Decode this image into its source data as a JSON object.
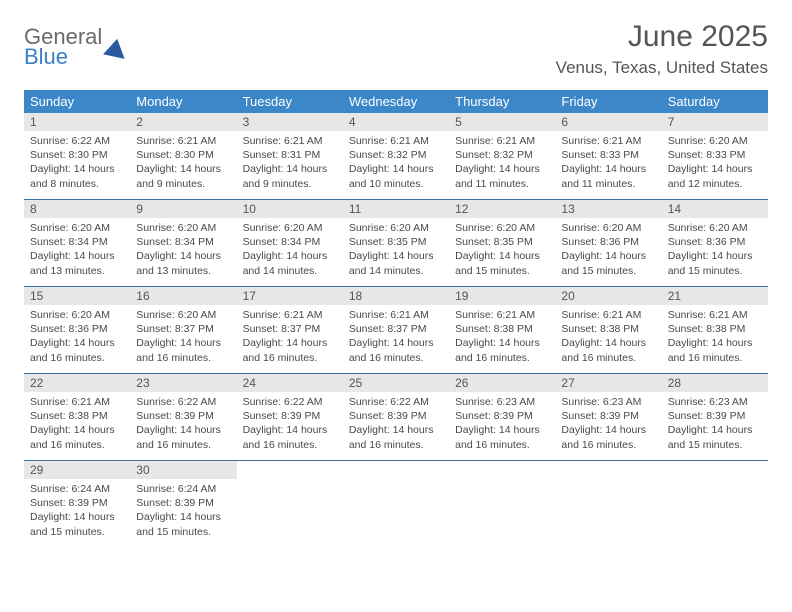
{
  "logo": {
    "word1": "General",
    "word2": "Blue"
  },
  "title": "June 2025",
  "location": "Venus, Texas, United States",
  "colors": {
    "header_bg": "#3b87c8",
    "header_fg": "#ffffff",
    "daynum_bg": "#e7e7e7",
    "row_border": "#3b6fa0",
    "text": "#4a4a4a"
  },
  "weekdays": [
    "Sunday",
    "Monday",
    "Tuesday",
    "Wednesday",
    "Thursday",
    "Friday",
    "Saturday"
  ],
  "weeks": [
    [
      {
        "n": "1",
        "sr": "6:22 AM",
        "ss": "8:30 PM",
        "dl": "14 hours and 8 minutes."
      },
      {
        "n": "2",
        "sr": "6:21 AM",
        "ss": "8:30 PM",
        "dl": "14 hours and 9 minutes."
      },
      {
        "n": "3",
        "sr": "6:21 AM",
        "ss": "8:31 PM",
        "dl": "14 hours and 9 minutes."
      },
      {
        "n": "4",
        "sr": "6:21 AM",
        "ss": "8:32 PM",
        "dl": "14 hours and 10 minutes."
      },
      {
        "n": "5",
        "sr": "6:21 AM",
        "ss": "8:32 PM",
        "dl": "14 hours and 11 minutes."
      },
      {
        "n": "6",
        "sr": "6:21 AM",
        "ss": "8:33 PM",
        "dl": "14 hours and 11 minutes."
      },
      {
        "n": "7",
        "sr": "6:20 AM",
        "ss": "8:33 PM",
        "dl": "14 hours and 12 minutes."
      }
    ],
    [
      {
        "n": "8",
        "sr": "6:20 AM",
        "ss": "8:34 PM",
        "dl": "14 hours and 13 minutes."
      },
      {
        "n": "9",
        "sr": "6:20 AM",
        "ss": "8:34 PM",
        "dl": "14 hours and 13 minutes."
      },
      {
        "n": "10",
        "sr": "6:20 AM",
        "ss": "8:34 PM",
        "dl": "14 hours and 14 minutes."
      },
      {
        "n": "11",
        "sr": "6:20 AM",
        "ss": "8:35 PM",
        "dl": "14 hours and 14 minutes."
      },
      {
        "n": "12",
        "sr": "6:20 AM",
        "ss": "8:35 PM",
        "dl": "14 hours and 15 minutes."
      },
      {
        "n": "13",
        "sr": "6:20 AM",
        "ss": "8:36 PM",
        "dl": "14 hours and 15 minutes."
      },
      {
        "n": "14",
        "sr": "6:20 AM",
        "ss": "8:36 PM",
        "dl": "14 hours and 15 minutes."
      }
    ],
    [
      {
        "n": "15",
        "sr": "6:20 AM",
        "ss": "8:36 PM",
        "dl": "14 hours and 16 minutes."
      },
      {
        "n": "16",
        "sr": "6:20 AM",
        "ss": "8:37 PM",
        "dl": "14 hours and 16 minutes."
      },
      {
        "n": "17",
        "sr": "6:21 AM",
        "ss": "8:37 PM",
        "dl": "14 hours and 16 minutes."
      },
      {
        "n": "18",
        "sr": "6:21 AM",
        "ss": "8:37 PM",
        "dl": "14 hours and 16 minutes."
      },
      {
        "n": "19",
        "sr": "6:21 AM",
        "ss": "8:38 PM",
        "dl": "14 hours and 16 minutes."
      },
      {
        "n": "20",
        "sr": "6:21 AM",
        "ss": "8:38 PM",
        "dl": "14 hours and 16 minutes."
      },
      {
        "n": "21",
        "sr": "6:21 AM",
        "ss": "8:38 PM",
        "dl": "14 hours and 16 minutes."
      }
    ],
    [
      {
        "n": "22",
        "sr": "6:21 AM",
        "ss": "8:38 PM",
        "dl": "14 hours and 16 minutes."
      },
      {
        "n": "23",
        "sr": "6:22 AM",
        "ss": "8:39 PM",
        "dl": "14 hours and 16 minutes."
      },
      {
        "n": "24",
        "sr": "6:22 AM",
        "ss": "8:39 PM",
        "dl": "14 hours and 16 minutes."
      },
      {
        "n": "25",
        "sr": "6:22 AM",
        "ss": "8:39 PM",
        "dl": "14 hours and 16 minutes."
      },
      {
        "n": "26",
        "sr": "6:23 AM",
        "ss": "8:39 PM",
        "dl": "14 hours and 16 minutes."
      },
      {
        "n": "27",
        "sr": "6:23 AM",
        "ss": "8:39 PM",
        "dl": "14 hours and 16 minutes."
      },
      {
        "n": "28",
        "sr": "6:23 AM",
        "ss": "8:39 PM",
        "dl": "14 hours and 15 minutes."
      }
    ],
    [
      {
        "n": "29",
        "sr": "6:24 AM",
        "ss": "8:39 PM",
        "dl": "14 hours and 15 minutes."
      },
      {
        "n": "30",
        "sr": "6:24 AM",
        "ss": "8:39 PM",
        "dl": "14 hours and 15 minutes."
      },
      null,
      null,
      null,
      null,
      null
    ]
  ],
  "labels": {
    "sunrise": "Sunrise:",
    "sunset": "Sunset:",
    "daylight": "Daylight:"
  }
}
